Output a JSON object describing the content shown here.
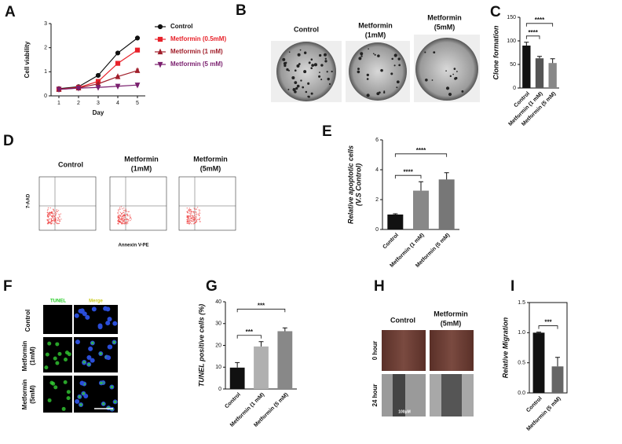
{
  "panel_labels": [
    "A",
    "B",
    "C",
    "D",
    "E",
    "F",
    "G",
    "H",
    "I"
  ],
  "images": {
    "B": {
      "columns": [
        [
          "Control"
        ],
        [
          "Metformin",
          "(1mM)"
        ],
        [
          "Metformin",
          "(5mM)"
        ]
      ]
    },
    "D": {
      "columns": [
        [
          "Control"
        ],
        [
          "Metformin",
          "(1mM)"
        ],
        [
          "Metformin",
          "(5mM)"
        ]
      ],
      "ylabel": "7-AAD",
      "xlabel": "Annexin V-PE"
    },
    "F": {
      "columns": [
        "TUNEL",
        "Merge"
      ],
      "rows": [
        [
          "Control"
        ],
        [
          "Metformin",
          "(1mM)"
        ],
        [
          "Metformin",
          "(5mM)"
        ]
      ]
    },
    "H": {
      "columns": [
        [
          "Control"
        ],
        [
          "Metformin",
          "(5mM)"
        ]
      ],
      "rows": [
        "0 hour",
        "24 hour"
      ],
      "scale": "100μM"
    }
  },
  "chart_data": [
    {
      "type": "line",
      "xlabel": "Day",
      "ylabel": "Cell viability",
      "x": [
        1,
        2,
        3,
        4,
        5
      ],
      "xlim": [
        0.6,
        5.4
      ],
      "xticks": [
        1,
        2,
        3,
        4,
        5
      ],
      "ylim": [
        0,
        3
      ],
      "yticks": [
        0,
        1,
        2,
        3
      ],
      "series": [
        {
          "name": "Control",
          "color": "#111111",
          "marker": "circle",
          "values": [
            0.3,
            0.38,
            0.85,
            1.78,
            2.4
          ],
          "errors": [
            0.03,
            0.03,
            0.05,
            0.06,
            0.06
          ]
        },
        {
          "name": "Metformin (0.5mM)",
          "color": "#e8222a",
          "marker": "square",
          "values": [
            0.28,
            0.35,
            0.6,
            1.35,
            1.9
          ],
          "errors": [
            0.02,
            0.02,
            0.03,
            0.04,
            0.04
          ]
        },
        {
          "name": "Metformin (1 mM)",
          "color": "#a01e2a",
          "marker": "triangle-up",
          "values": [
            0.27,
            0.33,
            0.5,
            0.8,
            1.05
          ],
          "errors": [
            0.02,
            0.02,
            0.03,
            0.03,
            0.06
          ]
        },
        {
          "name": "Metformin (5 mM)",
          "color": "#7a1f6e",
          "marker": "triangle-down",
          "values": [
            0.27,
            0.32,
            0.35,
            0.4,
            0.45
          ],
          "errors": [
            0.02,
            0.02,
            0.02,
            0.02,
            0.03
          ]
        }
      ]
    },
    {
      "type": "bar",
      "ylabel": "Clone formation",
      "categories": [
        "Control",
        "Metformin (1 mM)",
        "Metformin (5 mM)"
      ],
      "values": [
        90,
        63,
        53
      ],
      "errors": [
        7,
        4,
        9
      ],
      "colors": [
        "#111111",
        "#555555",
        "#888888"
      ],
      "ylim": [
        0,
        150
      ],
      "yticks": [
        0,
        50,
        100,
        150
      ],
      "annotations": [
        {
          "text": "****",
          "between": [
            "Control",
            "Metformin (1 mM)"
          ]
        },
        {
          "text": "****",
          "between": [
            "Control",
            "Metformin (5 mM)"
          ]
        }
      ]
    },
    {
      "type": "bar",
      "ylabel": [
        "Relative apoptotic cells",
        "(V.S Control)"
      ],
      "categories": [
        "Control",
        "Metformin (1 mM)",
        "Metformin (5 mM)"
      ],
      "values": [
        1.0,
        2.6,
        3.35
      ],
      "errors": [
        0.05,
        0.6,
        0.45
      ],
      "colors": [
        "#111111",
        "#888888",
        "#777777"
      ],
      "ylim": [
        0,
        6
      ],
      "yticks": [
        0,
        2,
        4,
        6
      ],
      "annotations": [
        {
          "text": "****",
          "between": [
            "Control",
            "Metformin (1 mM)"
          ]
        },
        {
          "text": "****",
          "between": [
            "Control",
            "Metformin (5 mM)"
          ]
        }
      ]
    },
    {
      "type": "bar",
      "ylabel": "TUNEL positive cells (%)",
      "categories": [
        "Control",
        "Metformin (1 mM)",
        "Metformin (5 mM)"
      ],
      "values": [
        9.8,
        19.5,
        26.5
      ],
      "errors": [
        2.3,
        2.2,
        1.5
      ],
      "colors": [
        "#111111",
        "#b0b0b0",
        "#888888"
      ],
      "ylim": [
        0,
        40
      ],
      "yticks": [
        0,
        10,
        20,
        30,
        40
      ],
      "annotations": [
        {
          "text": "***",
          "between": [
            "Control",
            "Metformin (1 mM)"
          ]
        },
        {
          "text": "***",
          "between": [
            "Control",
            "Metformin (5 mM)"
          ]
        }
      ]
    },
    {
      "type": "bar",
      "ylabel": "Relative Migration",
      "frame": true,
      "categories": [
        "Control",
        "Metformin (5 mM)"
      ],
      "values": [
        1.0,
        0.44
      ],
      "errors": [
        0.01,
        0.15
      ],
      "colors": [
        "#111111",
        "#666666"
      ],
      "ylim": [
        0,
        1.5
      ],
      "yticks": [
        {
          "value": 0,
          "label": "0.0"
        },
        {
          "value": 0.5,
          "label": "0.5"
        },
        {
          "value": 1,
          "label": "1.0"
        },
        {
          "value": 1.5,
          "label": "1.5"
        }
      ],
      "annotations": [
        {
          "text": "***",
          "between": [
            "Control",
            "Metformin (5 mM)"
          ]
        }
      ]
    }
  ]
}
